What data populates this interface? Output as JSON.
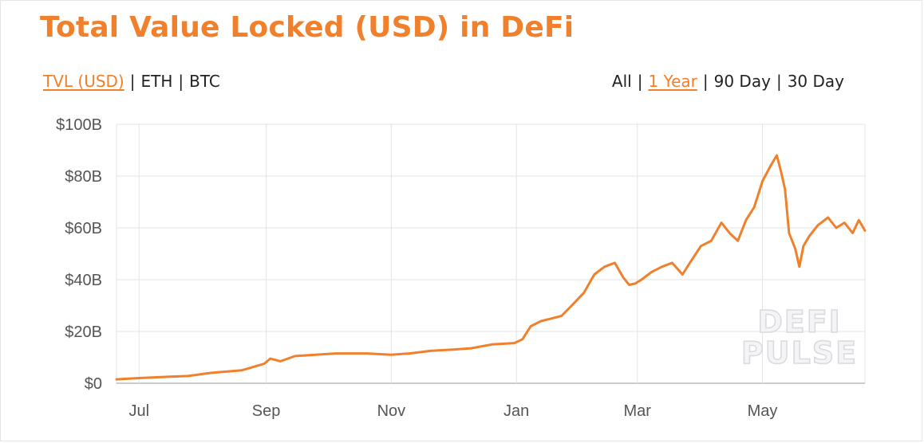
{
  "header": {
    "title": "Total Value Locked (USD) in DeFi",
    "metric_options": [
      {
        "label": "TVL (USD)",
        "active": true
      },
      {
        "label": "ETH",
        "active": false
      },
      {
        "label": "BTC",
        "active": false
      }
    ],
    "range_options": [
      {
        "label": "All",
        "active": false
      },
      {
        "label": "1 Year",
        "active": true
      },
      {
        "label": "90 Day",
        "active": false
      },
      {
        "label": "30 Day",
        "active": false
      }
    ],
    "separator": "|"
  },
  "watermark": {
    "line1": "DEFI",
    "line2": "PULSE"
  },
  "colors": {
    "accent": "#f0802b",
    "line": "#f0802b",
    "grid": "#e3e3e3"
  },
  "chart_data": {
    "type": "line",
    "title": "Total Value Locked (USD) in DeFi",
    "xlabel": "",
    "ylabel": "",
    "grid": true,
    "ylim": [
      0,
      100
    ],
    "y_unit": "billion USD",
    "y_ticks": [
      {
        "value": 0,
        "label": "$0"
      },
      {
        "value": 20,
        "label": "$20B"
      },
      {
        "value": 40,
        "label": "$40B"
      },
      {
        "value": 60,
        "label": "$60B"
      },
      {
        "value": 80,
        "label": "$80B"
      },
      {
        "value": 100,
        "label": "$100B"
      }
    ],
    "xlim": [
      "2020-06-20",
      "2021-06-20"
    ],
    "x_ticks": [
      {
        "value": "2020-07-01",
        "label": "Jul"
      },
      {
        "value": "2020-09-01",
        "label": "Sep"
      },
      {
        "value": "2020-11-01",
        "label": "Nov"
      },
      {
        "value": "2021-01-01",
        "label": "Jan"
      },
      {
        "value": "2021-03-01",
        "label": "Mar"
      },
      {
        "value": "2021-05-01",
        "label": "May"
      }
    ],
    "series": [
      {
        "color": "#f0802b",
        "x": [
          "2020-06-20",
          "2020-07-01",
          "2020-07-15",
          "2020-07-25",
          "2020-08-05",
          "2020-08-20",
          "2020-08-31",
          "2020-09-03",
          "2020-09-08",
          "2020-09-15",
          "2020-09-25",
          "2020-10-05",
          "2020-10-20",
          "2020-11-01",
          "2020-11-10",
          "2020-11-20",
          "2020-12-01",
          "2020-12-10",
          "2020-12-20",
          "2020-12-31",
          "2021-01-04",
          "2021-01-08",
          "2021-01-13",
          "2021-01-18",
          "2021-01-23",
          "2021-01-28",
          "2021-02-03",
          "2021-02-08",
          "2021-02-13",
          "2021-02-18",
          "2021-02-22",
          "2021-02-25",
          "2021-02-28",
          "2021-03-03",
          "2021-03-08",
          "2021-03-13",
          "2021-03-18",
          "2021-03-23",
          "2021-03-27",
          "2021-04-01",
          "2021-04-06",
          "2021-04-11",
          "2021-04-15",
          "2021-04-19",
          "2021-04-23",
          "2021-04-27",
          "2021-05-01",
          "2021-05-05",
          "2021-05-08",
          "2021-05-10",
          "2021-05-12",
          "2021-05-14",
          "2021-05-17",
          "2021-05-19",
          "2021-05-21",
          "2021-05-24",
          "2021-05-28",
          "2021-06-02",
          "2021-06-06",
          "2021-06-10",
          "2021-06-14",
          "2021-06-17",
          "2021-06-20"
        ],
        "y": [
          1.5,
          2.0,
          2.5,
          2.8,
          4.0,
          5.0,
          7.5,
          9.5,
          8.5,
          10.5,
          11.0,
          11.5,
          11.5,
          11.0,
          11.5,
          12.5,
          13.0,
          13.5,
          15.0,
          15.5,
          17.0,
          22.0,
          24.0,
          25.0,
          26.0,
          30.0,
          35.0,
          42.0,
          45.0,
          46.5,
          41.0,
          38.0,
          38.5,
          40.0,
          43.0,
          45.0,
          46.5,
          42.0,
          47.0,
          53.0,
          55.0,
          62.0,
          58.0,
          55.0,
          63.0,
          68.0,
          78.0,
          84.0,
          88.0,
          82.0,
          75.0,
          58.0,
          52.0,
          45.0,
          53.0,
          57.0,
          61.0,
          64.0,
          60.0,
          62.0,
          58.0,
          63.0,
          59.0
        ]
      }
    ]
  }
}
